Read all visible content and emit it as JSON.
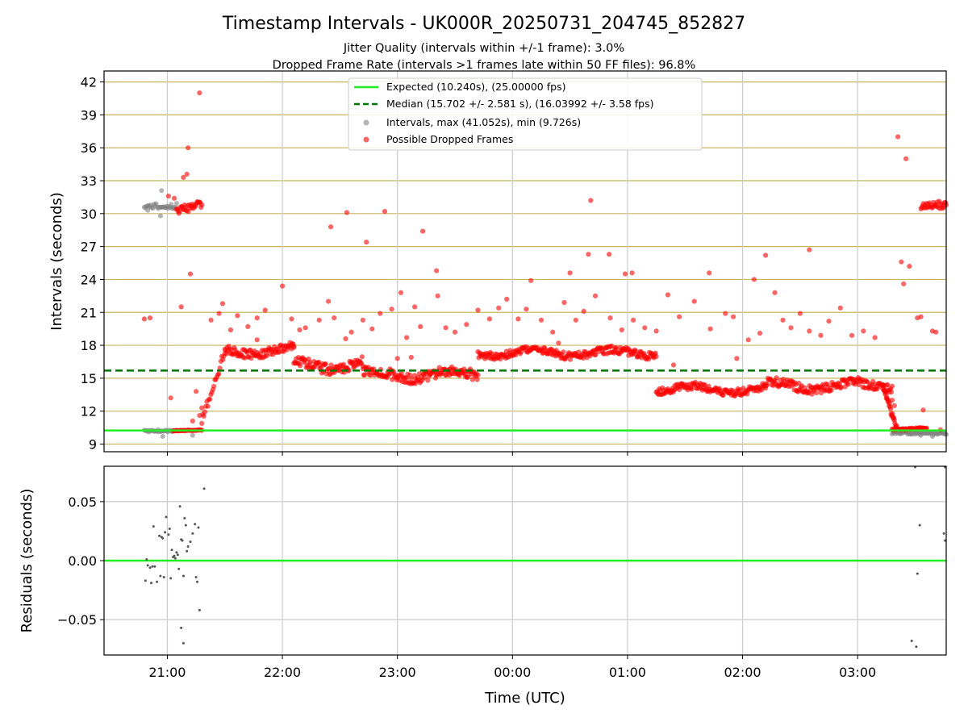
{
  "header": {
    "title": "Timestamp Intervals - UK000R_20250731_204745_852827",
    "subtitle1": "Jitter Quality (intervals within +/-1 frame): 3.0%",
    "subtitle2": "Dropped Frame Rate (intervals >1 frames late within 50 FF files): 96.8%"
  },
  "colors": {
    "expected": "#22ee22",
    "median": "#007700",
    "intervals": "#808080",
    "dropped": "#ff0000",
    "hgrid": "#c8b560",
    "vgrid": "#cccccc",
    "residual_points": "#555555"
  },
  "chart_data": [
    {
      "type": "scatter",
      "panel": "top",
      "title": "Timestamp Intervals - UK000R_20250731_204745_852827",
      "xlabel": "",
      "ylabel": "Intervals (seconds)",
      "x_unit": "hours since 00:00 UTC",
      "xlim": [
        -3.55,
        3.77
      ],
      "ylim": [
        8.3,
        43.0
      ],
      "yticks": [
        9,
        12,
        15,
        18,
        21,
        24,
        27,
        30,
        33,
        36,
        39,
        42
      ],
      "xticks": [
        -3,
        -2,
        -1,
        0,
        1,
        2,
        3
      ],
      "xtick_labels": [
        "21:00",
        "22:00",
        "23:00",
        "00:00",
        "01:00",
        "02:00",
        "03:00"
      ],
      "grid": true,
      "legend_position": "top-center",
      "legend": [
        "Expected (10.240s), (25.00000 fps)",
        "Median (15.702 +/- 2.581 s), (16.03992 +/- 3.58 fps)",
        "Intervals, max (41.052s), min (9.726s)",
        "Possible Dropped Frames"
      ],
      "lines": {
        "expected": 10.24,
        "median": 15.702
      },
      "interval_series": [
        {
          "segment": "gray-high",
          "x_start": -3.2,
          "x_end": -2.92,
          "y_center": 30.7,
          "y_spread": 0.25
        },
        {
          "segment": "gray-low",
          "x_start": -3.2,
          "x_end": -2.92,
          "y_center": 10.2,
          "y_spread": 0.1
        },
        {
          "segment": "gray-tail",
          "x_start": 3.3,
          "x_end": 3.77,
          "y_center": 10.0,
          "y_spread": 0.15
        }
      ],
      "dropped_series": [
        {
          "segment": "start-high",
          "x_start": -2.92,
          "x_end": -2.7,
          "y_center": 30.6,
          "y_spread": 0.5
        },
        {
          "segment": "start-low",
          "x_start": -2.95,
          "x_end": -2.7,
          "y_center": 10.25,
          "y_spread": 0.05
        },
        {
          "segment": "band-1",
          "x_start": -2.5,
          "x_end": -1.9,
          "y_center": 17.5,
          "y_spread": 0.6
        },
        {
          "segment": "band-2",
          "x_start": -1.9,
          "x_end": -1.3,
          "y_center": 16.2,
          "y_spread": 0.7
        },
        {
          "segment": "band-3",
          "x_start": -1.3,
          "x_end": -0.3,
          "y_center": 15.3,
          "y_spread": 0.7
        },
        {
          "segment": "band-4",
          "x_start": -0.3,
          "x_end": 1.25,
          "y_center": 17.3,
          "y_spread": 0.5
        },
        {
          "segment": "band-5",
          "x_start": 1.25,
          "x_end": 2.2,
          "y_center": 14.0,
          "y_spread": 0.5
        },
        {
          "segment": "band-6",
          "x_start": 2.2,
          "x_end": 3.3,
          "y_center": 14.3,
          "y_spread": 0.6
        },
        {
          "segment": "end-high",
          "x_start": 3.55,
          "x_end": 3.77,
          "y_center": 30.5,
          "y_spread": 0.5
        },
        {
          "segment": "end-low",
          "x_start": 3.3,
          "x_end": 3.6,
          "y_center": 10.4,
          "y_spread": 0.1
        }
      ],
      "dropped_outliers": [
        [
          -2.72,
          41.0
        ],
        [
          -2.82,
          36.0
        ],
        [
          -2.83,
          33.6
        ],
        [
          -2.86,
          33.3
        ],
        [
          -2.94,
          31.4
        ],
        [
          -2.99,
          31.6
        ],
        [
          -2.8,
          24.5
        ],
        [
          -2.88,
          21.5
        ],
        [
          -3.15,
          20.5
        ],
        [
          -3.2,
          20.4
        ],
        [
          -2.97,
          13.2
        ],
        [
          -2.75,
          13.8
        ],
        [
          -2.7,
          12.3
        ],
        [
          -2.72,
          11.6
        ],
        [
          -2.78,
          11.1
        ],
        [
          -2.62,
          20.3
        ],
        [
          -2.55,
          20.9
        ],
        [
          -2.52,
          21.8
        ],
        [
          -2.45,
          19.4
        ],
        [
          -2.39,
          20.7
        ],
        [
          -2.3,
          19.7
        ],
        [
          -2.22,
          20.5
        ],
        [
          -2.15,
          21.2
        ],
        [
          -2.0,
          23.4
        ],
        [
          -1.92,
          20.4
        ],
        [
          -1.85,
          19.4
        ],
        [
          -1.8,
          19.6
        ],
        [
          -1.68,
          20.3
        ],
        [
          -1.6,
          22.0
        ],
        [
          -1.55,
          20.5
        ],
        [
          -1.45,
          18.6
        ],
        [
          -1.4,
          19.2
        ],
        [
          -1.3,
          20.3
        ],
        [
          -1.22,
          19.5
        ],
        [
          -1.15,
          20.9
        ],
        [
          -1.05,
          21.3
        ],
        [
          -0.97,
          22.8
        ],
        [
          -0.92,
          18.7
        ],
        [
          -0.85,
          21.5
        ],
        [
          -0.8,
          19.7
        ],
        [
          -0.65,
          22.5
        ],
        [
          -0.58,
          19.6
        ],
        [
          -0.5,
          19.2
        ],
        [
          -0.4,
          19.9
        ],
        [
          -0.3,
          21.2
        ],
        [
          -0.2,
          20.4
        ],
        [
          -0.12,
          21.4
        ],
        [
          -0.05,
          22.2
        ],
        [
          0.05,
          20.4
        ],
        [
          0.12,
          21.3
        ],
        [
          0.25,
          20.3
        ],
        [
          0.35,
          19.2
        ],
        [
          0.45,
          21.9
        ],
        [
          0.55,
          20.3
        ],
        [
          0.62,
          21.1
        ],
        [
          0.72,
          22.5
        ],
        [
          0.85,
          20.5
        ],
        [
          0.95,
          19.4
        ],
        [
          1.05,
          20.3
        ],
        [
          1.15,
          19.6
        ],
        [
          1.25,
          19.3
        ],
        [
          1.35,
          22.6
        ],
        [
          1.45,
          20.6
        ],
        [
          1.58,
          22.0
        ],
        [
          1.72,
          19.5
        ],
        [
          1.85,
          20.9
        ],
        [
          1.92,
          20.6
        ],
        [
          2.05,
          18.5
        ],
        [
          2.15,
          19.1
        ],
        [
          2.28,
          22.8
        ],
        [
          2.35,
          20.3
        ],
        [
          2.42,
          19.6
        ],
        [
          2.5,
          20.9
        ],
        [
          2.58,
          19.3
        ],
        [
          2.68,
          18.9
        ],
        [
          2.75,
          20.2
        ],
        [
          2.85,
          21.4
        ],
        [
          2.95,
          18.9
        ],
        [
          3.05,
          19.3
        ],
        [
          3.15,
          18.7
        ],
        [
          -1.58,
          28.8
        ],
        [
          -1.44,
          30.1
        ],
        [
          -1.27,
          27.4
        ],
        [
          -1.11,
          30.2
        ],
        [
          -0.78,
          28.4
        ],
        [
          -0.66,
          24.8
        ],
        [
          0.16,
          23.9
        ],
        [
          0.5,
          24.6
        ],
        [
          0.66,
          26.3
        ],
        [
          0.84,
          26.3
        ],
        [
          0.68,
          31.2
        ],
        [
          0.98,
          24.5
        ],
        [
          1.04,
          24.6
        ],
        [
          1.71,
          24.6
        ],
        [
          2.2,
          26.2
        ],
        [
          2.58,
          26.7
        ],
        [
          2.1,
          24.0
        ],
        [
          -2.22,
          18.5
        ],
        [
          -1.9,
          17.8
        ],
        [
          -1.0,
          16.8
        ],
        [
          -0.88,
          16.9
        ],
        [
          -0.55,
          15.8
        ],
        [
          0.4,
          18.2
        ],
        [
          1.4,
          16.2
        ],
        [
          1.95,
          16.8
        ],
        [
          3.35,
          37.0
        ],
        [
          3.42,
          35.0
        ],
        [
          3.45,
          25.2
        ],
        [
          3.38,
          25.6
        ],
        [
          3.4,
          23.6
        ],
        [
          3.52,
          20.5
        ],
        [
          3.55,
          20.6
        ],
        [
          3.65,
          19.3
        ],
        [
          3.68,
          19.2
        ],
        [
          3.57,
          12.1
        ],
        [
          3.32,
          12.5
        ],
        [
          3.3,
          13.0
        ],
        [
          3.72,
          10.3
        ]
      ]
    },
    {
      "type": "scatter",
      "panel": "bottom",
      "xlabel": "Time (UTC)",
      "ylabel": "Residuals (seconds)",
      "xlim": [
        -3.55,
        3.77
      ],
      "ylim": [
        -0.08,
        0.08
      ],
      "yticks": [
        -0.05,
        0.0,
        0.05
      ],
      "ytick_labels": [
        "−0.05",
        "0.00",
        "0.05"
      ],
      "xticks": [
        -3,
        -2,
        -1,
        0,
        1,
        2,
        3
      ],
      "xtick_labels": [
        "21:00",
        "22:00",
        "23:00",
        "00:00",
        "01:00",
        "02:00",
        "03:00"
      ],
      "grid": true,
      "zero_line": 0.0,
      "points": [
        [
          -3.18,
          0.001
        ],
        [
          -3.19,
          -0.017
        ],
        [
          -3.17,
          -0.004
        ],
        [
          -3.15,
          -0.006
        ],
        [
          -3.14,
          -0.019
        ],
        [
          -3.13,
          -0.005
        ],
        [
          -3.11,
          -0.005
        ],
        [
          -3.12,
          0.029
        ],
        [
          -3.09,
          -0.018
        ],
        [
          -3.07,
          0.021
        ],
        [
          -3.06,
          -0.013
        ],
        [
          -3.05,
          0.02
        ],
        [
          -3.03,
          -0.014
        ],
        [
          -3.04,
          0.019
        ],
        [
          -3.02,
          0.024
        ],
        [
          -3.01,
          0.037
        ],
        [
          -2.99,
          0.022
        ],
        [
          -2.98,
          0.027
        ],
        [
          -2.97,
          -0.015
        ],
        [
          -2.96,
          0.009
        ],
        [
          -2.95,
          0.003
        ],
        [
          -2.94,
          0.004
        ],
        [
          -2.93,
          0.002
        ],
        [
          -2.92,
          0.007
        ],
        [
          -2.91,
          0.005
        ],
        [
          -2.9,
          -0.007
        ],
        [
          -2.89,
          0.046
        ],
        [
          -2.88,
          0.018
        ],
        [
          -2.87,
          0.017
        ],
        [
          -2.86,
          -0.013
        ],
        [
          -2.85,
          0.036
        ],
        [
          -2.84,
          0.03
        ],
        [
          -2.83,
          0.008
        ],
        [
          -2.82,
          0.012
        ],
        [
          -2.8,
          0.016
        ],
        [
          -2.78,
          0.023
        ],
        [
          -2.76,
          0.031
        ],
        [
          -2.75,
          -0.014
        ],
        [
          -2.74,
          -0.018
        ],
        [
          -2.73,
          0.028
        ],
        [
          -2.88,
          -0.057
        ],
        [
          -2.86,
          -0.07
        ],
        [
          -2.72,
          -0.042
        ],
        [
          -2.68,
          0.061
        ],
        [
          3.5,
          0.08
        ],
        [
          3.54,
          0.03
        ],
        [
          3.52,
          -0.011
        ],
        [
          3.47,
          -0.068
        ],
        [
          3.51,
          -0.073
        ],
        [
          3.76,
          0.08
        ],
        [
          3.75,
          0.023
        ],
        [
          3.76,
          0.017
        ]
      ]
    }
  ]
}
